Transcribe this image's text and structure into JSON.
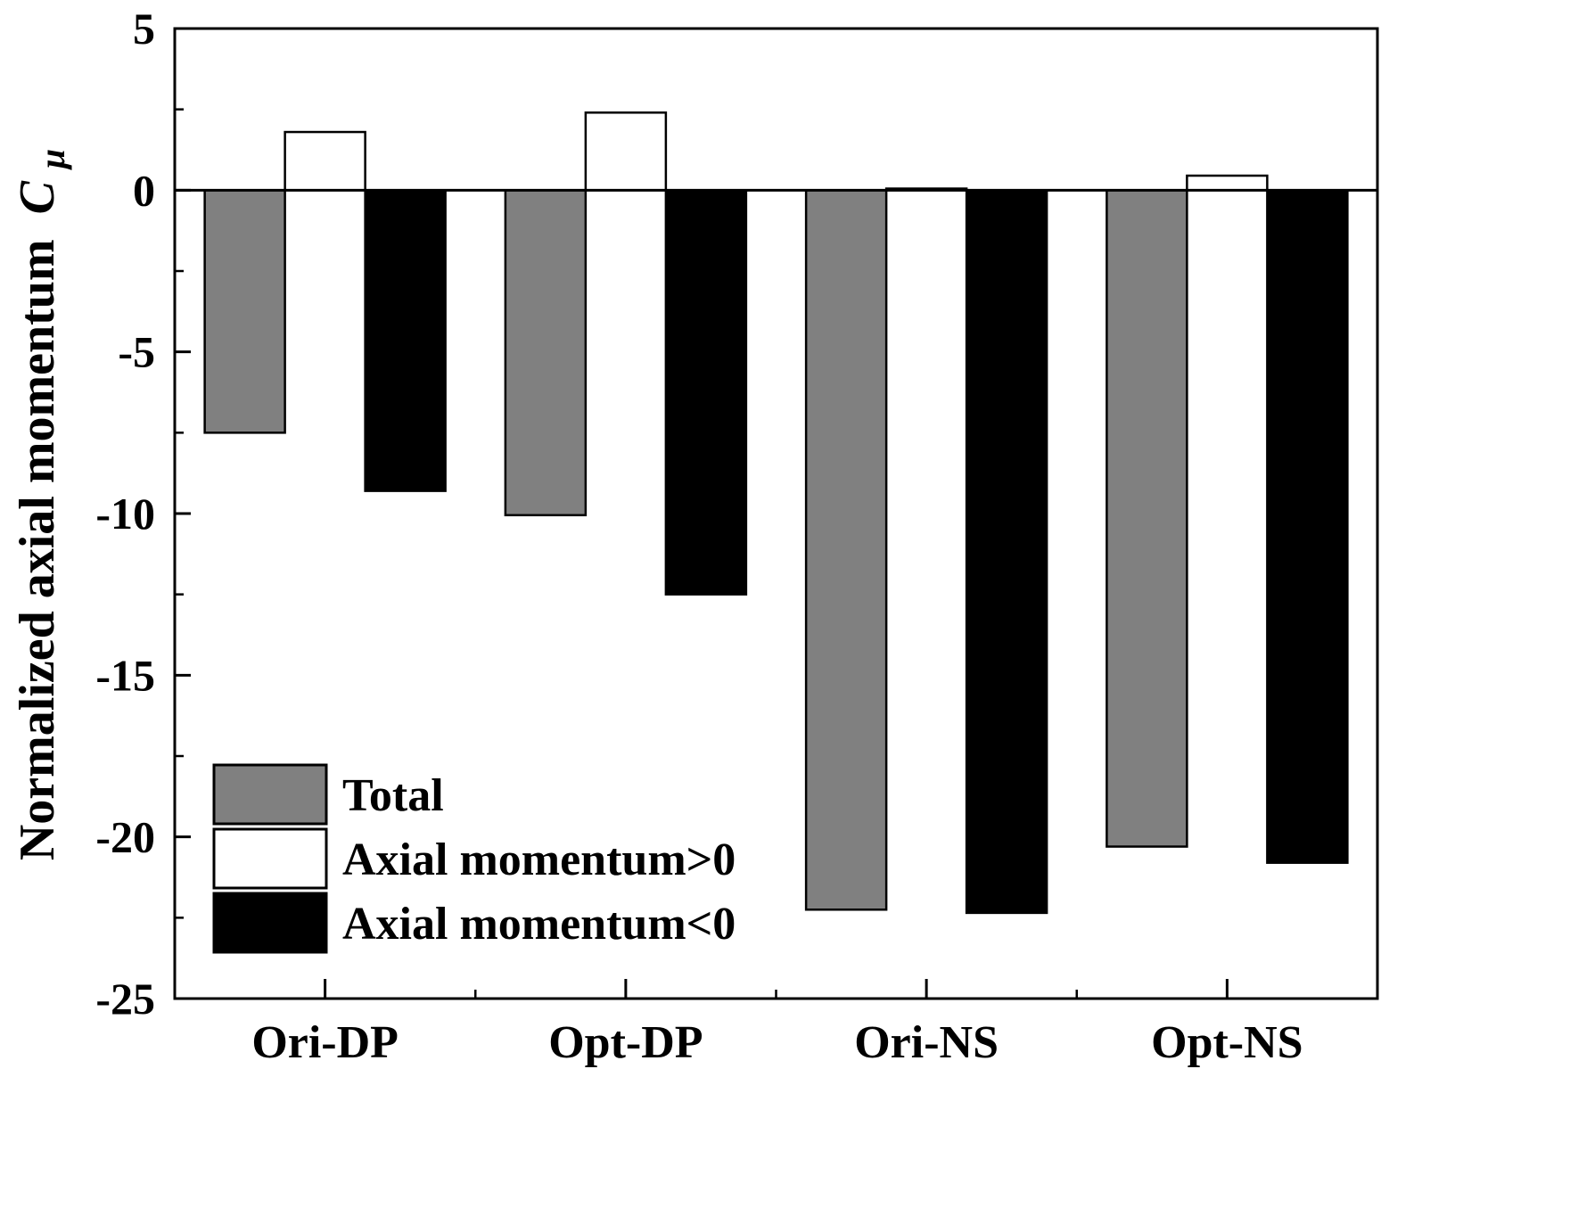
{
  "chart_data": {
    "type": "bar",
    "categories": [
      "Ori-DP",
      "Opt-DP",
      "Ori-NS",
      "Opt-NS"
    ],
    "series": [
      {
        "name": "Total",
        "color": "#808080",
        "values": [
          -7.5,
          -10.05,
          -22.25,
          -20.3
        ]
      },
      {
        "name": "Axial momentum>0",
        "color": "#ffffff",
        "values": [
          1.8,
          2.4,
          0.05,
          0.45
        ]
      },
      {
        "name": "Axial momentum<0",
        "color": "#000000",
        "values": [
          -9.3,
          -12.5,
          -22.35,
          -20.8
        ]
      }
    ],
    "title": "",
    "xlabel": "",
    "ylabel": "Normalized axial momentum",
    "ylabel_symbol": "C",
    "ylabel_subscript": "μ",
    "ylim": [
      -25,
      5
    ],
    "yticks": [
      5,
      0,
      -5,
      -10,
      -15,
      -20,
      -25
    ],
    "ytick_labels": [
      "5",
      "0",
      "-5",
      "-10",
      "-15",
      "-20",
      "-25"
    ],
    "legend_position": "lower-left",
    "grid": false
  }
}
